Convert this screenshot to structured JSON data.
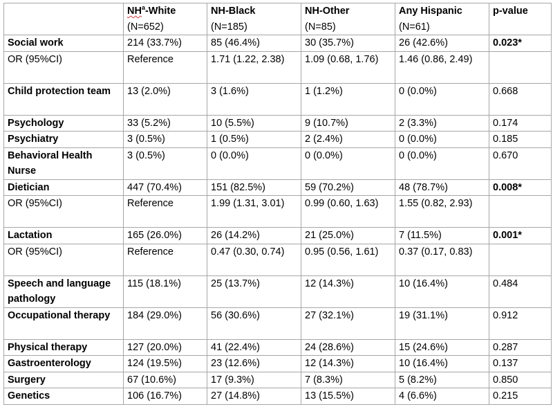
{
  "header": {
    "col0": "",
    "col1": {
      "prefix": "NH",
      "sup": "a",
      "suffix": "-White",
      "n": "(N=652)"
    },
    "col2": {
      "title": "NH-Black",
      "n": "(N=185)"
    },
    "col3": {
      "title": "NH-Other",
      "n": "(N=85)"
    },
    "col4": {
      "title": "Any Hispanic",
      "n": "(N=61)"
    },
    "col5": {
      "title": "p-value"
    }
  },
  "rows": [
    {
      "label": "Social work",
      "bold_label": true,
      "c1": "214 (33.7%)",
      "c2": "85 (46.4%)",
      "c3": "30 (35.7%)",
      "c4": "26 (42.6%)",
      "p": "0.023*",
      "bold_p": true
    },
    {
      "label": "OR (95%CI)",
      "bold_label": false,
      "c1": "Reference",
      "c2": "1.71 (1.22, 2.38)",
      "c3": "1.09 (0.68, 1.76)",
      "c4": "1.46 (0.86, 2.49)",
      "p": "",
      "bold_p": false
    },
    {
      "label": "Child protection team",
      "bold_label": true,
      "c1": "13 (2.0%)",
      "c2": "3 (1.6%)",
      "c3": "1 (1.2%)",
      "c4": " 0 (0.0%)",
      "p": "0.668",
      "bold_p": false
    },
    {
      "label": "Psychology",
      "bold_label": true,
      "c1": "33 (5.2%)",
      "c2": "10 (5.5%)",
      "c3": "9 (10.7%)",
      "c4": "2 (3.3%)",
      "p": "0.174",
      "bold_p": false
    },
    {
      "label": "Psychiatry",
      "bold_label": true,
      "c1": "3 (0.5%)",
      "c2": "1 (0.5%)",
      "c3": "2 (2.4%)",
      "c4": " 0 (0.0%)",
      "p": "0.185",
      "bold_p": false
    },
    {
      "label": "Behavioral Health Nurse",
      "bold_label": true,
      "c1": "3 (0.5%)",
      "c2": " 0 (0.0%)",
      "c3": " 0 (0.0%)",
      "c4": " 0 (0.0%)",
      "p": "0.670",
      "bold_p": false
    },
    {
      "label": "Dietician",
      "bold_label": true,
      "c1": "447 (70.4%)",
      "c2": "151 (82.5%)",
      "c3": "59 (70.2%)",
      "c4": "48 (78.7%)",
      "p": "0.008*",
      "bold_p": true
    },
    {
      "label": "OR (95%CI)",
      "bold_label": false,
      "c1": "Reference",
      "c2": "1.99 (1.31, 3.01)",
      "c3": "0.99 (0.60, 1.63)",
      "c4": "1.55 (0.82, 2.93)",
      "p": "",
      "bold_p": false
    },
    {
      "label": "Lactation",
      "bold_label": true,
      "c1": "165 (26.0%)",
      "c2": "26 (14.2%)",
      "c3": "21 (25.0%)",
      "c4": "7 (11.5%)",
      "p": "0.001*",
      "bold_p": true
    },
    {
      "label": "OR (95%CI)",
      "bold_label": false,
      "c1": "Reference",
      "c2": "0.47 (0.30, 0.74)",
      "c3": "0.95 (0.56, 1.61)",
      "c4": "0.37 (0.17, 0.83)",
      "p": "",
      "bold_p": false
    },
    {
      "label": "Speech and language pathology",
      "bold_label": true,
      "c1": "115 (18.1%)",
      "c2": "25 (13.7%)",
      "c3": "12 (14.3%)",
      "c4": "10 (16.4%)",
      "p": "0.484",
      "bold_p": false
    },
    {
      "label": "Occupational therapy",
      "bold_label": true,
      "c1": "184 (29.0%)",
      "c2": "56 (30.6%)",
      "c3": "27 (32.1%)",
      "c4": "19 (31.1%)",
      "p": "0.912",
      "bold_p": false
    },
    {
      "label": "Physical therapy",
      "bold_label": true,
      "c1": "127 (20.0%)",
      "c2": "41 (22.4%)",
      "c3": "24 (28.6%)",
      "c4": "15 (24.6%)",
      "p": "0.287",
      "bold_p": false
    },
    {
      "label": "Gastroenterology",
      "bold_label": true,
      "c1": "124 (19.5%)",
      "c2": "23 (12.6%)",
      "c3": "12 (14.3%)",
      "c4": "10 (16.4%)",
      "p": "0.137",
      "bold_p": false
    },
    {
      "label": "Surgery",
      "bold_label": true,
      "c1": "67 (10.6%)",
      "c2": "17 (9.3%)",
      "c3": "7 (8.3%)",
      "c4": "5 (8.2%)",
      "p": "0.850",
      "bold_p": false
    },
    {
      "label": "Genetics",
      "bold_label": true,
      "c1": "106 (16.7%)",
      "c2": "27 (14.8%)",
      "c3": "13 (15.5%)",
      "c4": "4 (6.6%)",
      "p": "0.215",
      "bold_p": false
    }
  ]
}
